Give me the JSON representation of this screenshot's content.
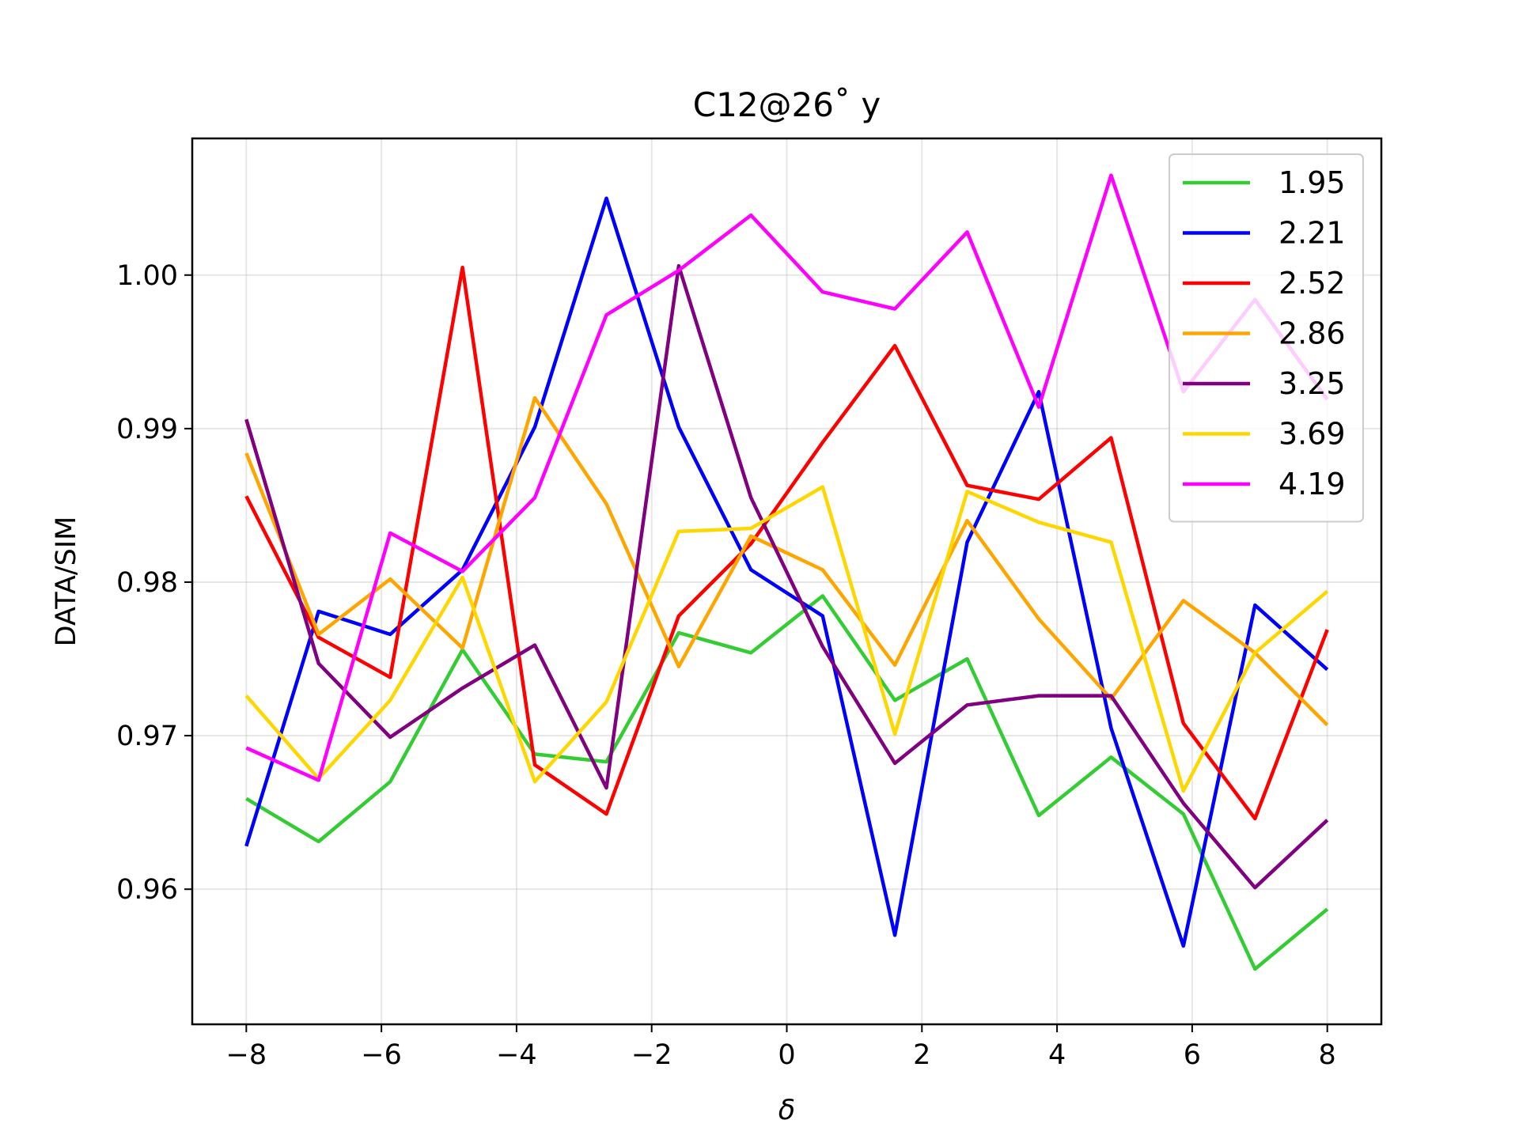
{
  "chart_data": {
    "type": "line",
    "title": "C12@26˚ y",
    "xlabel": "δ",
    "ylabel": "DATA/SIM",
    "xlim": [
      -8.8,
      8.8
    ],
    "ylim": [
      0.9512,
      1.0089
    ],
    "xticks": [
      -8,
      -6,
      -4,
      -2,
      0,
      2,
      4,
      6,
      8
    ],
    "xtick_labels": [
      "−8",
      "−6",
      "−4",
      "−2",
      "0",
      "2",
      "4",
      "6",
      "8"
    ],
    "yticks": [
      0.96,
      0.97,
      0.98,
      0.99,
      1.0
    ],
    "ytick_labels": [
      "0.96",
      "0.97",
      "0.98",
      "0.99",
      "1.00"
    ],
    "grid": true,
    "legend_position": "top-right",
    "x": [
      -8.0,
      -6.93,
      -5.87,
      -4.8,
      -3.73,
      -2.67,
      -1.6,
      -0.53,
      0.53,
      1.6,
      2.67,
      3.73,
      4.8,
      5.87,
      6.93,
      8.0
    ],
    "series": [
      {
        "name": "1.95",
        "color": "#33cc33",
        "values": [
          0.9659,
          0.9631,
          0.967,
          0.9756,
          0.9688,
          0.9683,
          0.9767,
          0.9754,
          0.9791,
          0.9723,
          0.975,
          0.9648,
          0.9686,
          0.9649,
          0.9548,
          0.9587
        ]
      },
      {
        "name": "2.21",
        "color": "#0000ff",
        "values": [
          0.9628,
          0.9781,
          0.9766,
          0.9808,
          0.9901,
          1.005,
          0.9901,
          0.9808,
          0.9778,
          0.957,
          0.9826,
          0.9924,
          0.9705,
          0.9563,
          0.9785,
          0.9743
        ]
      },
      {
        "name": "2.52",
        "color": "#ff0000",
        "values": [
          0.9856,
          0.9764,
          0.9738,
          1.0005,
          0.9681,
          0.9649,
          0.9778,
          0.9825,
          0.9891,
          0.9954,
          0.9863,
          0.9854,
          0.9894,
          0.9708,
          0.9646,
          0.9769
        ]
      },
      {
        "name": "2.86",
        "color": "#ffa500",
        "values": [
          0.9884,
          0.9766,
          0.9802,
          0.9757,
          0.992,
          0.9851,
          0.9745,
          0.983,
          0.9808,
          0.9746,
          0.984,
          0.9776,
          0.9724,
          0.9788,
          0.9754,
          0.9707
        ]
      },
      {
        "name": "3.25",
        "color": "#800080",
        "values": [
          0.9906,
          0.9747,
          0.9699,
          0.9731,
          0.9759,
          0.9666,
          1.0006,
          0.9855,
          0.9758,
          0.9682,
          0.972,
          0.9726,
          0.9726,
          0.9656,
          0.9601,
          0.9645
        ]
      },
      {
        "name": "3.69",
        "color": "#ffd700",
        "values": [
          0.9726,
          0.9672,
          0.9723,
          0.9803,
          0.967,
          0.9722,
          0.9833,
          0.9835,
          0.9862,
          0.9701,
          0.9859,
          0.9839,
          0.9826,
          0.9664,
          0.9754,
          0.9794
        ]
      },
      {
        "name": "4.19",
        "color": "#ff00ff",
        "values": [
          0.9692,
          0.9671,
          0.9832,
          0.9807,
          0.9855,
          0.9974,
          1.0003,
          1.0039,
          0.9989,
          0.9978,
          1.0028,
          0.9914,
          1.0065,
          0.9924,
          0.9984,
          0.9919
        ]
      }
    ]
  }
}
